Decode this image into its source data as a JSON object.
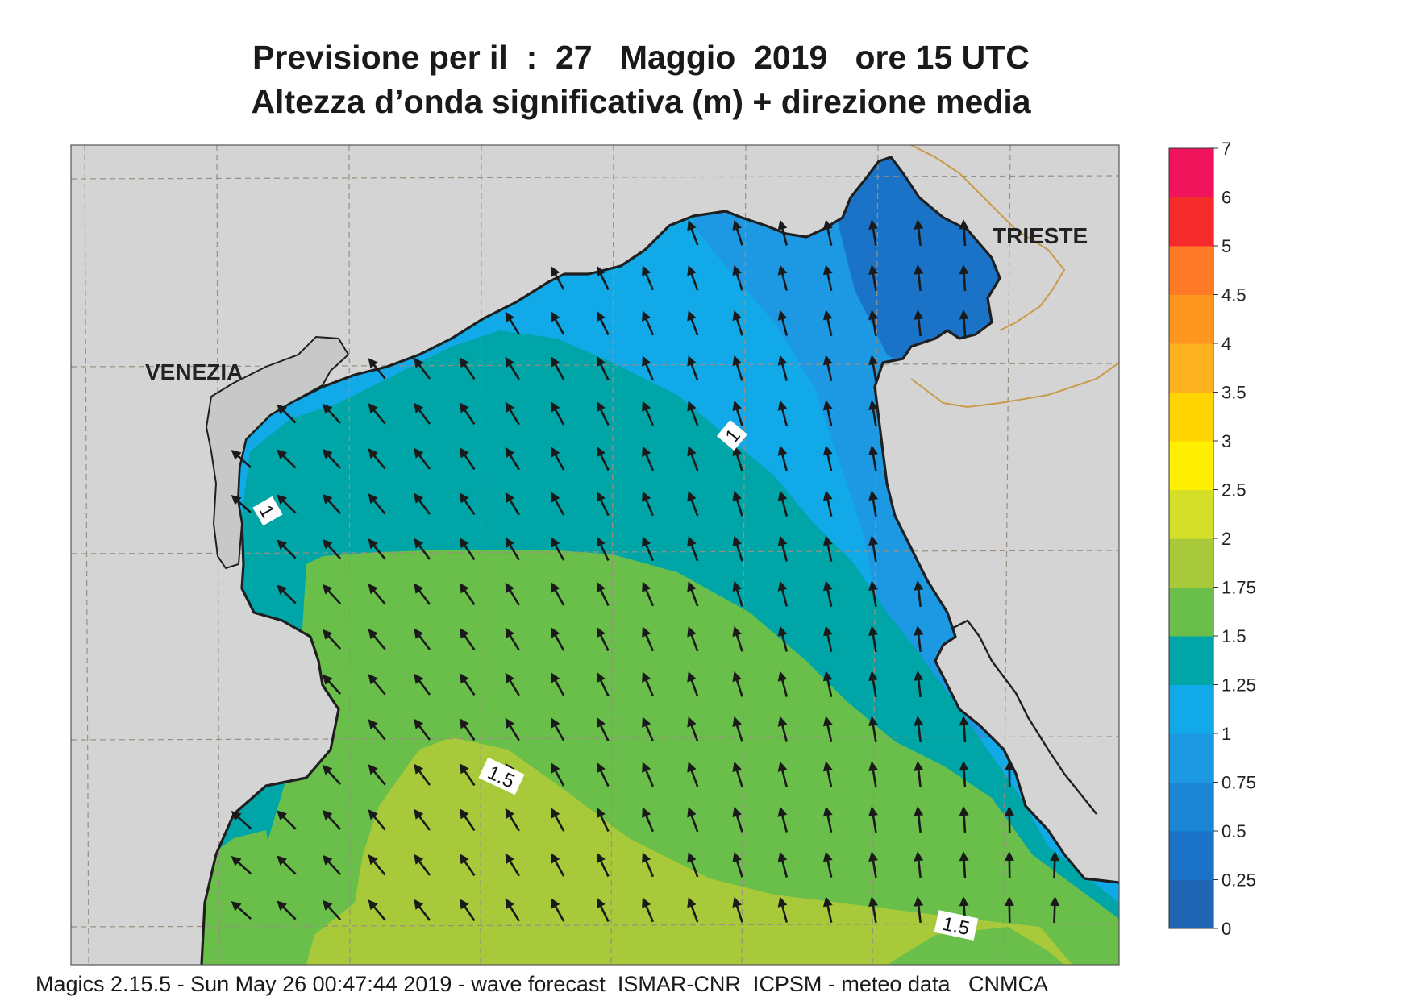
{
  "title": {
    "line1": "Previsione per il  :  27   Maggio  2019   ore 15 UTC",
    "line2": "Altezza d’onda significativa (m) + direzione media"
  },
  "places": [
    {
      "id": "venezia",
      "label": "VENEZIA"
    },
    {
      "id": "trieste",
      "label": "TRIESTE"
    }
  ],
  "contour_labels": [
    "1",
    "1",
    "1.5",
    "1.5"
  ],
  "map_colors": {
    "land": "#d4d4d4",
    "coast": "#1f1f1f",
    "border": "#c89b48",
    "grid": "#9a8f80"
  },
  "colorbar": {
    "tick_labels": [
      "0",
      "0.25",
      "0.5",
      "0.75",
      "1",
      "1.25",
      "1.5",
      "1.75",
      "2",
      "2.5",
      "3",
      "3.5",
      "4",
      "4.5",
      "5",
      "6",
      "7"
    ],
    "band_colors": [
      "#1e66b4",
      "#1a73c7",
      "#1c86d6",
      "#1d98e2",
      "#11a9e7",
      "#00a5a8",
      "#6abf4b",
      "#a8c93a",
      "#d4df27",
      "#ffef00",
      "#ffd400",
      "#ffb21f",
      "#ff961f",
      "#ff7a26",
      "#f52a2a",
      "#ef145c"
    ]
  },
  "footer": "Magics 2.15.5 - Sun May 26 00:47:44 2019 - wave forecast  ISMAR-CNR  ICPSM - meteo data   CNMCA"
}
